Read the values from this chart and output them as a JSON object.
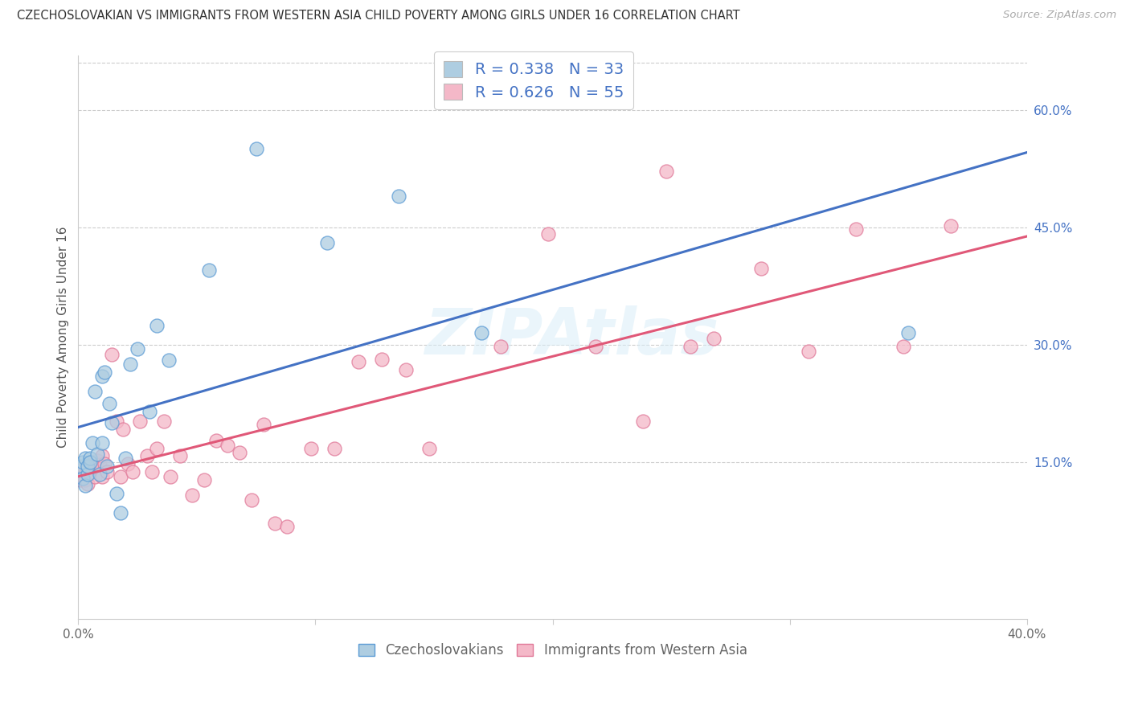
{
  "title": "CZECHOSLOVAKIAN VS IMMIGRANTS FROM WESTERN ASIA CHILD POVERTY AMONG GIRLS UNDER 16 CORRELATION CHART",
  "source": "Source: ZipAtlas.com",
  "ylabel": "Child Poverty Among Girls Under 16",
  "xlim": [
    0.0,
    0.4
  ],
  "ylim": [
    -0.05,
    0.67
  ],
  "x_ticks": [
    0.0,
    0.1,
    0.2,
    0.3,
    0.4
  ],
  "x_tick_labels": [
    "0.0%",
    "",
    "",
    "",
    "40.0%"
  ],
  "y_ticks_right": [
    0.15,
    0.3,
    0.45,
    0.6
  ],
  "y_tick_labels_right": [
    "15.0%",
    "30.0%",
    "45.0%",
    "60.0%"
  ],
  "grid_color": "#cccccc",
  "background_color": "#ffffff",
  "legend_R1": "R = 0.338",
  "legend_N1": "N = 33",
  "legend_R2": "R = 0.626",
  "legend_N2": "N = 55",
  "blue_color": "#aecde1",
  "blue_edge_color": "#5b9bd5",
  "blue_line_color": "#4472c4",
  "pink_color": "#f4b8c8",
  "pink_edge_color": "#e07898",
  "pink_line_color": "#e05878",
  "blue_text_color": "#4472c4",
  "watermark": "ZIPAtlas",
  "blue_scatter_x": [
    0.001,
    0.002,
    0.002,
    0.003,
    0.003,
    0.004,
    0.004,
    0.005,
    0.005,
    0.006,
    0.007,
    0.008,
    0.009,
    0.01,
    0.01,
    0.011,
    0.012,
    0.013,
    0.014,
    0.016,
    0.018,
    0.02,
    0.022,
    0.025,
    0.03,
    0.033,
    0.038,
    0.055,
    0.075,
    0.105,
    0.135,
    0.17,
    0.35
  ],
  "blue_scatter_y": [
    0.145,
    0.15,
    0.13,
    0.155,
    0.12,
    0.135,
    0.145,
    0.155,
    0.15,
    0.175,
    0.24,
    0.16,
    0.135,
    0.175,
    0.26,
    0.265,
    0.145,
    0.225,
    0.2,
    0.11,
    0.085,
    0.155,
    0.275,
    0.295,
    0.215,
    0.325,
    0.28,
    0.395,
    0.55,
    0.43,
    0.49,
    0.315,
    0.315
  ],
  "pink_scatter_x": [
    0.001,
    0.001,
    0.002,
    0.003,
    0.004,
    0.005,
    0.005,
    0.006,
    0.007,
    0.008,
    0.009,
    0.01,
    0.01,
    0.011,
    0.012,
    0.014,
    0.016,
    0.018,
    0.019,
    0.021,
    0.023,
    0.026,
    0.029,
    0.031,
    0.033,
    0.036,
    0.039,
    0.043,
    0.048,
    0.053,
    0.058,
    0.063,
    0.068,
    0.073,
    0.078,
    0.083,
    0.088,
    0.098,
    0.108,
    0.118,
    0.128,
    0.138,
    0.148,
    0.178,
    0.198,
    0.218,
    0.238,
    0.248,
    0.258,
    0.268,
    0.288,
    0.308,
    0.328,
    0.348,
    0.368
  ],
  "pink_scatter_y": [
    0.14,
    0.128,
    0.132,
    0.128,
    0.122,
    0.142,
    0.138,
    0.148,
    0.132,
    0.152,
    0.147,
    0.158,
    0.132,
    0.148,
    0.138,
    0.288,
    0.202,
    0.132,
    0.192,
    0.148,
    0.138,
    0.202,
    0.158,
    0.138,
    0.168,
    0.202,
    0.132,
    0.158,
    0.108,
    0.128,
    0.178,
    0.172,
    0.162,
    0.102,
    0.198,
    0.072,
    0.068,
    0.168,
    0.168,
    0.278,
    0.282,
    0.268,
    0.168,
    0.298,
    0.442,
    0.298,
    0.202,
    0.522,
    0.298,
    0.308,
    0.398,
    0.292,
    0.448,
    0.298,
    0.452
  ]
}
